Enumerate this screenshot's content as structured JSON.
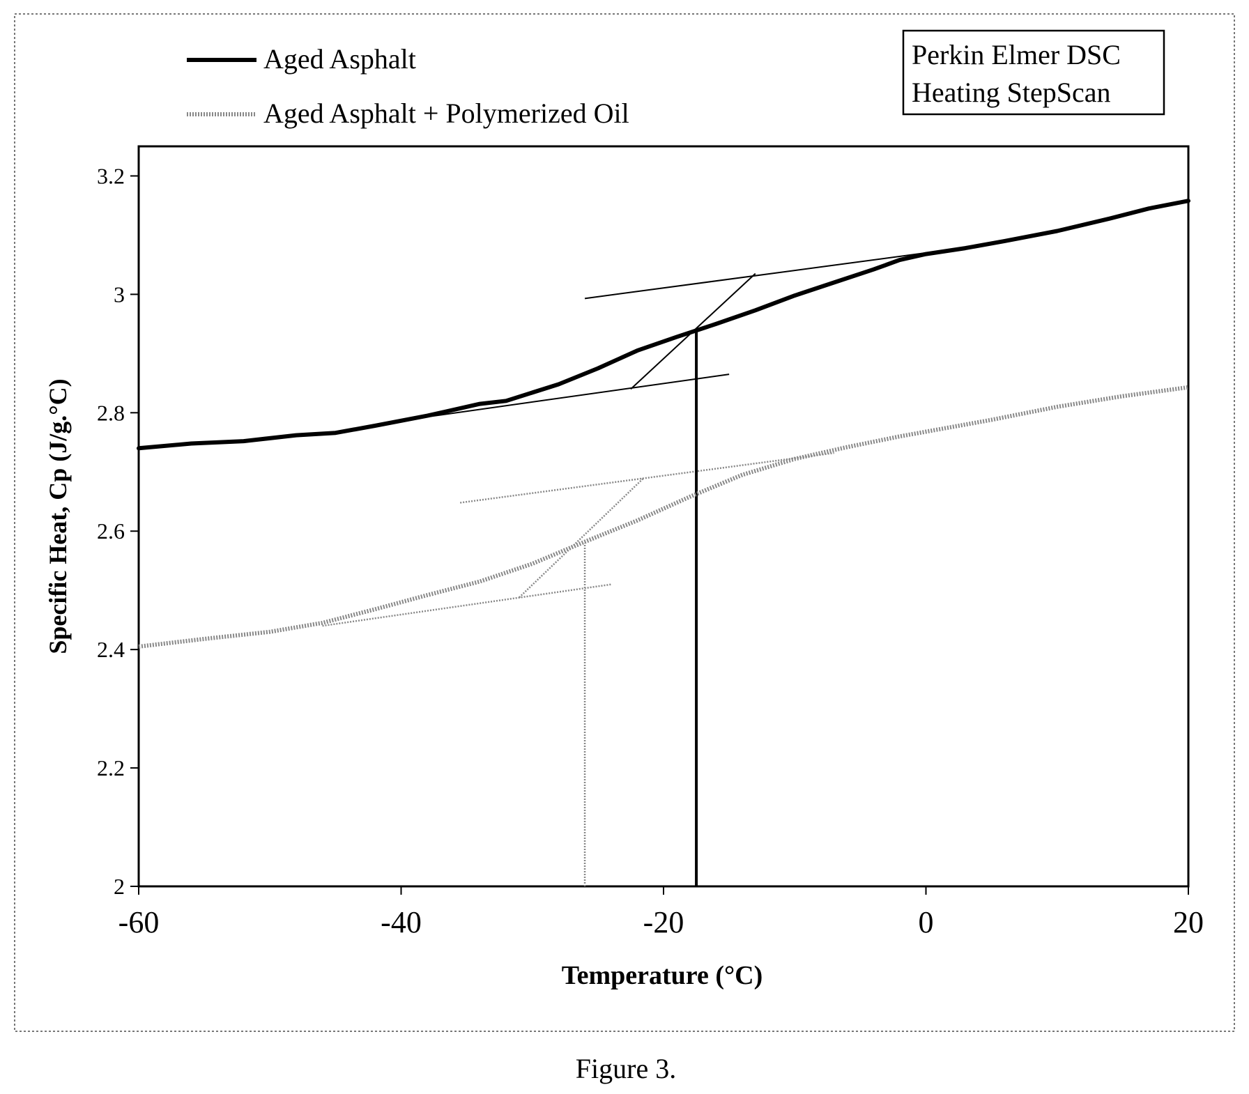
{
  "caption": "Figure 3.",
  "chart_data": {
    "type": "line",
    "title": "",
    "xlabel": "Temperature (°C)",
    "ylabel": "Specific Heat, Cp (J/g.°C)",
    "xlim": [
      -60,
      20
    ],
    "ylim": [
      2,
      3.25
    ],
    "xticks": [
      -60,
      -40,
      -20,
      0,
      20
    ],
    "yticks": [
      2,
      2.2,
      2.4,
      2.6,
      2.8,
      3,
      3.2
    ],
    "xtick_labels": [
      "-60",
      "-40",
      "-20",
      "0",
      "20"
    ],
    "ytick_labels": [
      "2",
      "2.2",
      "2.4",
      "2.6",
      "2.8",
      "3",
      "3.2"
    ],
    "grid": false,
    "legend_position": "top-left",
    "annotation_lines": [
      "Perkin Elmer DSC",
      "Heating StepScan"
    ],
    "series": [
      {
        "name": "Aged Asphalt",
        "style": "solid-bold",
        "color": "#000000",
        "x": [
          -60,
          -56,
          -52,
          -48,
          -45,
          -42,
          -38,
          -34,
          -32,
          -28,
          -25,
          -22,
          -19,
          -16,
          -13,
          -10,
          -7,
          -4,
          -2,
          0,
          3,
          6,
          10,
          14,
          17,
          20
        ],
        "y": [
          2.74,
          2.748,
          2.752,
          2.762,
          2.766,
          2.778,
          2.795,
          2.815,
          2.82,
          2.848,
          2.875,
          2.905,
          2.928,
          2.95,
          2.973,
          2.998,
          3.02,
          3.042,
          3.058,
          3.068,
          3.078,
          3.09,
          3.107,
          3.128,
          3.145,
          3.158
        ]
      },
      {
        "name": "Aged Asphalt + Polymerized Oil",
        "style": "dotted",
        "color": "#888888",
        "x": [
          -60,
          -55,
          -50,
          -46,
          -42,
          -38,
          -34,
          -30,
          -26,
          -22,
          -18,
          -14,
          -10,
          -6,
          -2,
          0,
          5,
          10,
          15,
          20
        ],
        "y": [
          2.405,
          2.418,
          2.43,
          2.445,
          2.468,
          2.492,
          2.515,
          2.545,
          2.582,
          2.618,
          2.658,
          2.695,
          2.722,
          2.742,
          2.76,
          2.768,
          2.788,
          2.81,
          2.828,
          2.843
        ]
      }
    ],
    "tangent_lines": [
      {
        "series": "Aged Asphalt",
        "role": "lower-baseline",
        "x": [
          -39,
          -15
        ],
        "y": [
          2.79,
          2.865
        ]
      },
      {
        "series": "Aged Asphalt",
        "role": "upper-baseline",
        "x": [
          -26,
          0
        ],
        "y": [
          2.993,
          3.07
        ]
      },
      {
        "series": "Aged Asphalt",
        "role": "inflection-tangent",
        "x": [
          -22.5,
          -13
        ],
        "y": [
          2.84,
          3.035
        ]
      },
      {
        "series": "Aged Asphalt + Polymerized Oil",
        "role": "lower-baseline",
        "x": [
          -46,
          -24
        ],
        "y": [
          2.44,
          2.51
        ]
      },
      {
        "series": "Aged Asphalt + Polymerized Oil",
        "role": "upper-baseline",
        "x": [
          -35.5,
          -7
        ],
        "y": [
          2.648,
          2.732
        ]
      },
      {
        "series": "Aged Asphalt + Polymerized Oil",
        "role": "inflection-tangent",
        "x": [
          -31,
          -21.5
        ],
        "y": [
          2.488,
          2.69
        ]
      }
    ],
    "markers": [
      {
        "series": "Aged Asphalt",
        "x": -17.5,
        "y_from": 2,
        "y_to": 2.94
      },
      {
        "series": "Aged Asphalt + Polymerized Oil",
        "x": -26,
        "y_from": 2,
        "y_to": 2.58
      }
    ]
  }
}
